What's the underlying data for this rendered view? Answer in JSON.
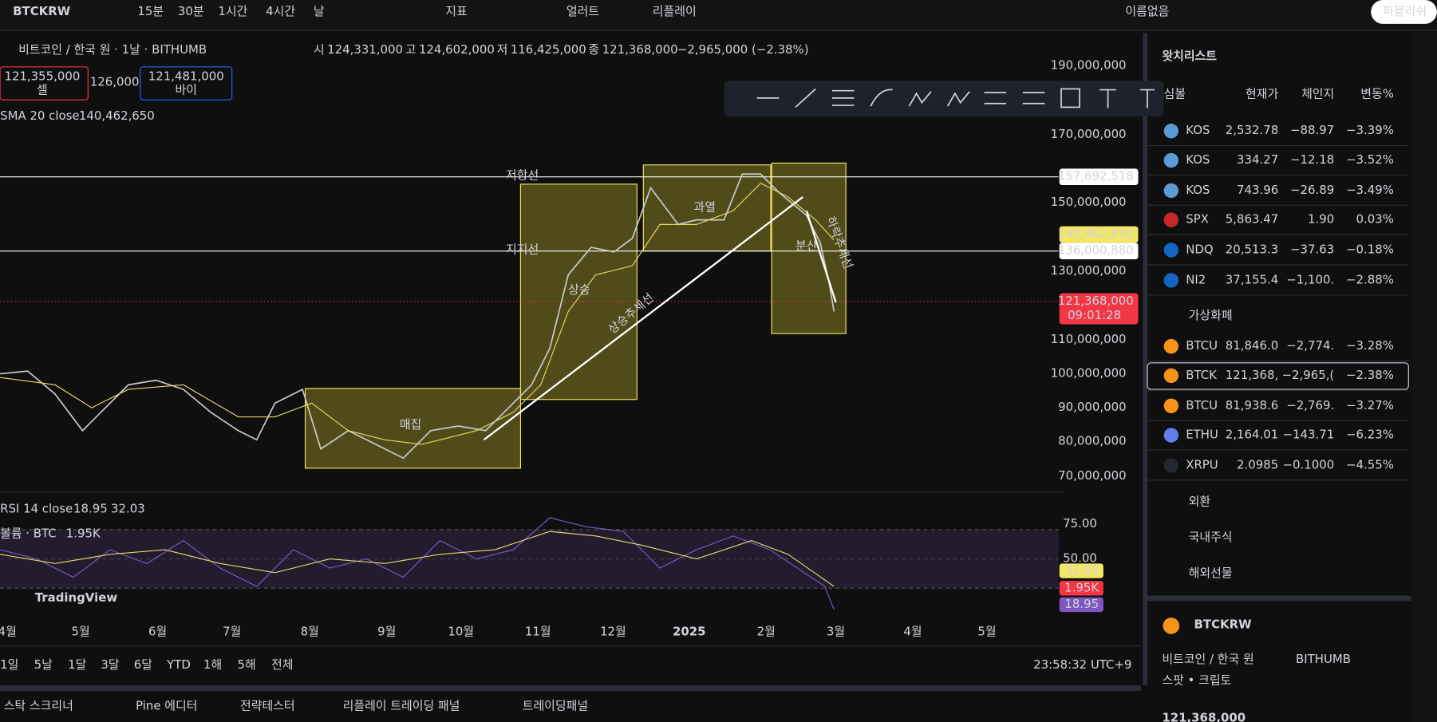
{
  "toolbar": {
    "symbol": "BTCKRW",
    "intervals": [
      "15분",
      "30분",
      "1시간",
      "4시간",
      "날"
    ],
    "indicators": "지표",
    "alerts": "얼러트",
    "replay": "리플레이",
    "layout_name": "이름없음",
    "publish": "퍼블리쉬"
  },
  "legend": {
    "title": "비트코인 / 한국 원 · 1날 · BITHUMB",
    "ohlc": [
      {
        "label": "시",
        "value": "124,331,000"
      },
      {
        "label": "고",
        "value": "124,602,000"
      },
      {
        "label": "저",
        "value": "116,425,000"
      },
      {
        "label": "종",
        "value": "121,368,000"
      }
    ],
    "change": "−2,965,000 (−2.38%)",
    "sell_price": "121,355,000",
    "sell_label": "셀",
    "spread": "126,000",
    "buy_price": "121,481,000",
    "buy_label": "바이",
    "sma_label": "SMA 20 close",
    "sma_value": "140,462,650"
  },
  "price_axis": [
    "190,000,000",
    "170,000,000",
    "150,000,000",
    "130,000,000",
    "110,000,000",
    "100,000,000",
    "90,000,000",
    "80,000,000",
    "70,000,000"
  ],
  "price_tags": {
    "resistance": "157,692,518",
    "sma": "140,462,650",
    "support": "136,000,880",
    "last": "121,368,000",
    "countdown": "09:01:28"
  },
  "drawings": {
    "resistance": "저항선",
    "support": "지지선",
    "accumulation": "매집",
    "rise": "상승",
    "overheat": "과열",
    "distribution": "분산",
    "uptrend": "상승추세선",
    "downtrend": "하락추세선"
  },
  "rsi": {
    "label": "RSI 14 close",
    "value": "18.95",
    "ma_value": "32.03",
    "volume_label": "볼륨 · BTC",
    "volume_value": "1.95K",
    "axis": [
      "75.00",
      "50.00"
    ]
  },
  "watermark": "TradingView",
  "time_axis": [
    "4월",
    "5월",
    "6월",
    "7월",
    "8월",
    "9월",
    "10월",
    "11월",
    "12월",
    "2025",
    "2월",
    "3월",
    "4월",
    "5월"
  ],
  "ranges": [
    "1일",
    "5날",
    "1달",
    "3달",
    "6달",
    "YTD",
    "1해",
    "5해",
    "전체"
  ],
  "clock": "23:58:32 UTC+9",
  "bottom_tabs": [
    "스탁 스크리너",
    "Pine 에디터",
    "전략테스터",
    "리플레이 트레이딩 패널",
    "트레이딩패널"
  ],
  "watchlist": {
    "title": "왓치리스트",
    "columns": [
      "심볼",
      "현재가",
      "체인지",
      "변동%"
    ],
    "rows": [
      {
        "symbol": "KOS",
        "last": "2,532.78",
        "change": "−88.97",
        "pct": "−3.39%"
      },
      {
        "symbol": "KOS",
        "last": "334.27",
        "change": "−12.18",
        "pct": "−3.52%"
      },
      {
        "symbol": "KOS",
        "last": "743.96",
        "change": "−26.89",
        "pct": "−3.49%"
      },
      {
        "symbol": "SPX",
        "last": "5,863.47",
        "change": "1.90",
        "pct": "0.03%"
      },
      {
        "symbol": "NDQ",
        "last": "20,513.3",
        "change": "−37.63",
        "pct": "−0.18%"
      },
      {
        "symbol": "NI2",
        "last": "37,155.4",
        "change": "−1,100.",
        "pct": "−2.88%"
      }
    ],
    "crypto_section": "가상화폐",
    "crypto_rows": [
      {
        "symbol": "BTCU",
        "last": "81,846.0",
        "change": "−2,774.",
        "pct": "−3.28%"
      },
      {
        "symbol": "BTCK",
        "last": "121,368,",
        "change": "−2,965,(",
        "pct": "−2.38%"
      },
      {
        "symbol": "BTCU",
        "last": "81,938.6",
        "change": "−2,769.",
        "pct": "−3.27%"
      },
      {
        "symbol": "ETHU",
        "last": "2,164.01",
        "change": "−143.71",
        "pct": "−6.23%"
      },
      {
        "symbol": "XRPU",
        "last": "2.0985",
        "change": "−0.1000",
        "pct": "−4.55%"
      }
    ],
    "sections": [
      "외환",
      "국내주식",
      "해외선물"
    ]
  },
  "details": {
    "symbol": "BTCKRW",
    "name": "비트코인 / 한국 원",
    "exchange": "BITHUMB",
    "type": "스팟 • 크립토",
    "price": "121,368,000"
  }
}
